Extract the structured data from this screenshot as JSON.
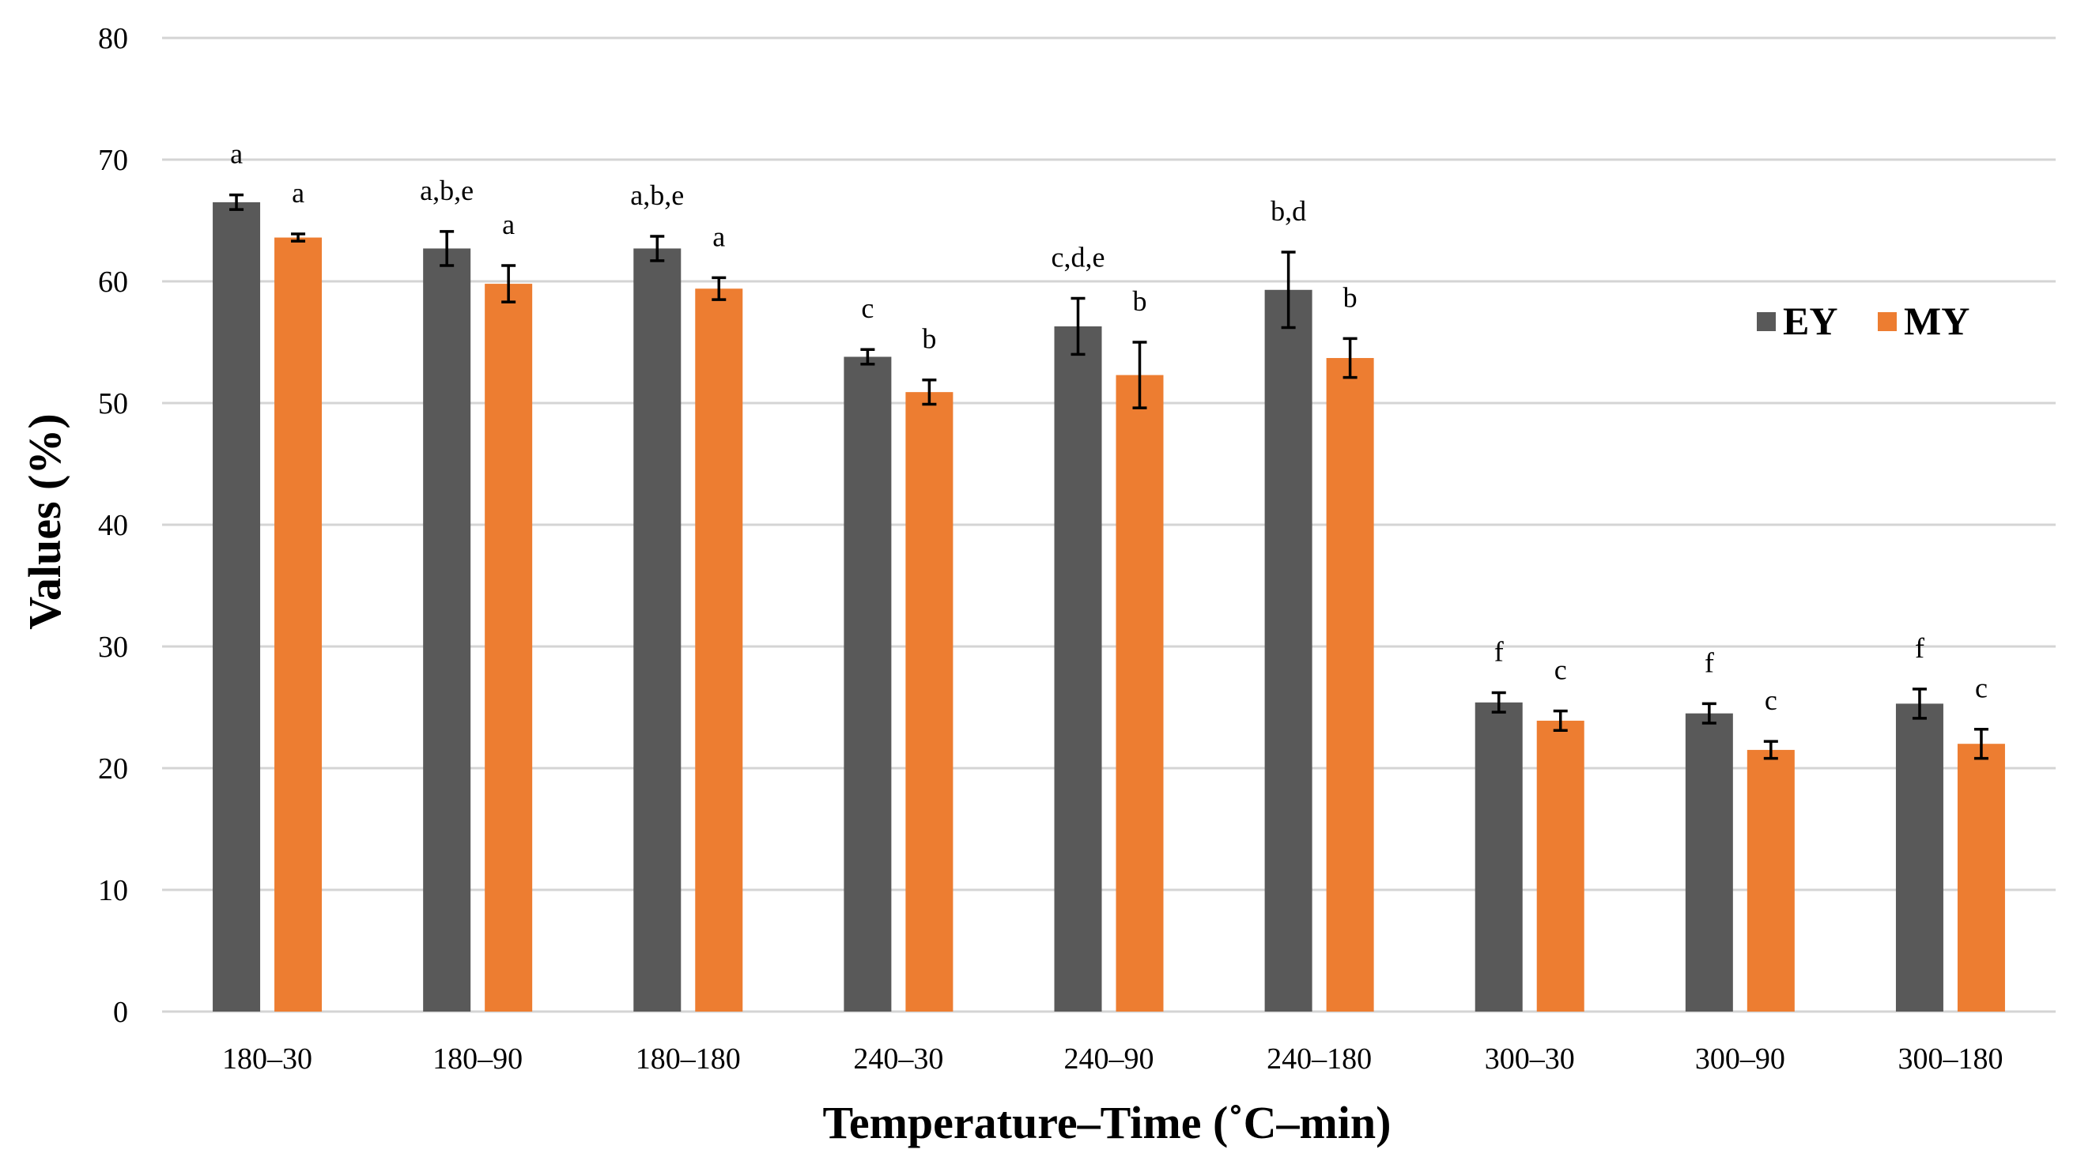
{
  "chart_data": {
    "type": "bar",
    "title": "",
    "xlabel": "Temperature–Time (˚C–min)",
    "ylabel": "Values (%)",
    "ylim": [
      0,
      80
    ],
    "yticks": [
      0,
      10,
      20,
      30,
      40,
      50,
      60,
      70,
      80
    ],
    "grid": true,
    "legend_position": "right",
    "categories": [
      "180–30",
      "180–90",
      "180–180",
      "240–30",
      "240–90",
      "240–180",
      "300–30",
      "300–90",
      "300–180"
    ],
    "series": [
      {
        "name": "EY",
        "color": "#595959",
        "values": [
          66.5,
          62.7,
          62.7,
          53.8,
          56.3,
          59.3,
          25.4,
          24.5,
          25.3
        ],
        "errors": [
          0.6,
          1.4,
          1.0,
          0.6,
          2.3,
          3.1,
          0.8,
          0.8,
          1.2
        ],
        "labels": [
          "a",
          "a,b,e",
          "a,b,e",
          "c",
          "c,d,e",
          "b,d",
          "f",
          "f",
          "f"
        ]
      },
      {
        "name": "MY",
        "color": "#ed7d31",
        "values": [
          63.6,
          59.8,
          59.4,
          50.9,
          52.3,
          53.7,
          23.9,
          21.5,
          22.0
        ],
        "errors": [
          0.3,
          1.5,
          0.9,
          1.0,
          2.7,
          1.6,
          0.8,
          0.7,
          1.2
        ],
        "labels": [
          "a",
          "a",
          "a",
          "b",
          "b",
          "b",
          "c",
          "c",
          "c"
        ]
      }
    ]
  }
}
